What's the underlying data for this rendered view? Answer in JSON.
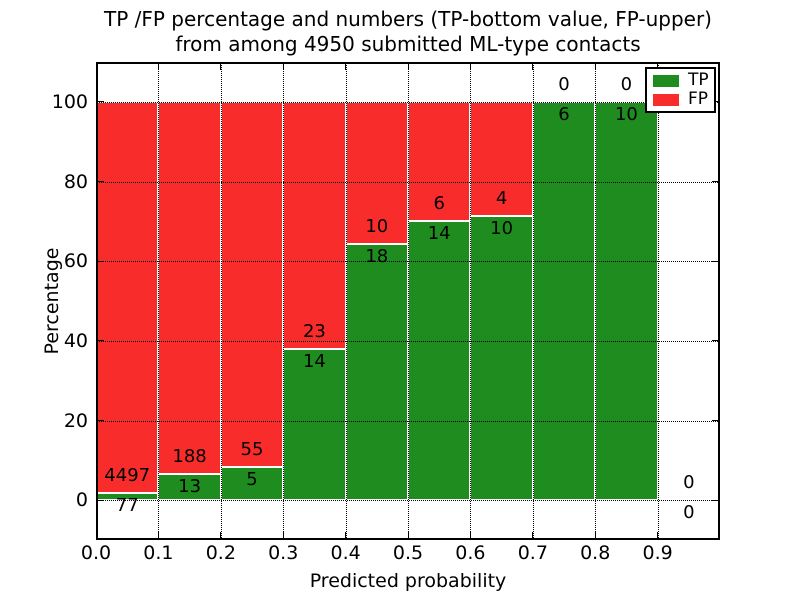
{
  "title": {
    "line1": "TP /FP percentage and numbers (TP-bottom value, FP-upper)",
    "line2": "from among 4950 submitted ML-type contacts"
  },
  "axes": {
    "xlabel": "Predicted probability",
    "ylabel": "Percentage"
  },
  "legend": {
    "entries": [
      {
        "label": "TP",
        "color": "#1f8c1f"
      },
      {
        "label": "FP",
        "color": "#f92c2c"
      }
    ]
  },
  "chart_data": {
    "type": "bar",
    "stacked": true,
    "title": "TP /FP percentage and numbers (TP-bottom value, FP-upper) from among 4950 submitted ML-type contacts",
    "xlabel": "Predicted probability",
    "ylabel": "Percentage",
    "total_contacts": 4950,
    "bin_edges": [
      0.0,
      0.1,
      0.2,
      0.3,
      0.4,
      0.5,
      0.6,
      0.7,
      0.8,
      0.9,
      1.0
    ],
    "series": [
      {
        "name": "TP",
        "color": "#1f8c1f",
        "counts": [
          77,
          13,
          5,
          14,
          18,
          14,
          10,
          6,
          10,
          0
        ],
        "percent_of_bin": [
          1.68,
          6.47,
          8.33,
          37.84,
          64.29,
          70.0,
          71.43,
          100.0,
          100.0,
          0.0
        ]
      },
      {
        "name": "FP",
        "color": "#f92c2c",
        "counts": [
          4497,
          188,
          55,
          23,
          10,
          6,
          4,
          0,
          0,
          0
        ],
        "percent_of_bin": [
          98.32,
          93.53,
          91.67,
          62.16,
          35.71,
          30.0,
          28.57,
          0.0,
          0.0,
          0.0
        ]
      }
    ],
    "xlim": [
      0.0,
      1.0
    ],
    "ylim": [
      -10,
      110
    ],
    "xticks": [
      0.0,
      0.1,
      0.2,
      0.3,
      0.4,
      0.5,
      0.6,
      0.7,
      0.8,
      0.9
    ],
    "xtick_labels": [
      "0.0",
      "0.1",
      "0.2",
      "0.3",
      "0.4",
      "0.5",
      "0.6",
      "0.7",
      "0.8",
      "0.9"
    ],
    "yticks": [
      0,
      20,
      40,
      60,
      80,
      100
    ],
    "grid": "dotted",
    "legend_position": "upper right"
  }
}
